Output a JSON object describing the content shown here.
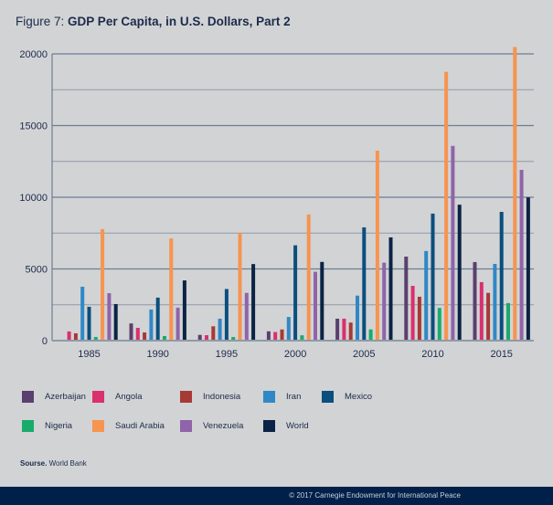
{
  "header": {
    "figure_prefix": "Figure 7:",
    "figure_title": "GDP Per Capita, in U.S. Dollars, Part 2"
  },
  "chart_data": {
    "type": "bar",
    "title": "GDP Per Capita, in U.S. Dollars, Part 2",
    "xlabel": "",
    "ylabel": "",
    "ylim": [
      0,
      20000
    ],
    "y_ticks": [
      0,
      5000,
      10000,
      15000,
      20000
    ],
    "y_tick_labels": [
      "0",
      "5000",
      "10000",
      "15000",
      "20000"
    ],
    "minor_gridline_step": 2500,
    "grid": true,
    "legend_position": "bottom",
    "categories": [
      "1985",
      "1990",
      "1995",
      "2000",
      "2005",
      "2010",
      "2015"
    ],
    "series": [
      {
        "name": "Azerbaijan",
        "color": "#5b3f6e",
        "values": [
          null,
          1200,
          400,
          650,
          1530,
          5860,
          5480
        ]
      },
      {
        "name": "Angola",
        "color": "#d9306e",
        "values": [
          640,
          890,
          380,
          600,
          1530,
          3820,
          4080
        ]
      },
      {
        "name": "Indonesia",
        "color": "#a63a36",
        "values": [
          510,
          570,
          1000,
          780,
          1260,
          3060,
          3330
        ]
      },
      {
        "name": "Iran",
        "color": "#2f88c6",
        "values": [
          3760,
          2170,
          1530,
          1650,
          3140,
          6250,
          5350
        ]
      },
      {
        "name": "Mexico",
        "color": "#0a4f7d",
        "values": [
          2360,
          3000,
          3600,
          6650,
          7900,
          8860,
          8980
        ]
      },
      {
        "name": "Nigeria",
        "color": "#19ab6a",
        "values": [
          255,
          320,
          250,
          370,
          780,
          2280,
          2620
        ]
      },
      {
        "name": "Saudi Arabia",
        "color": "#f7944f",
        "values": [
          7780,
          7130,
          7520,
          8800,
          13250,
          18750,
          20480
        ]
      },
      {
        "name": "Venezuela",
        "color": "#8f64a8",
        "values": [
          3310,
          2300,
          3330,
          4800,
          5440,
          13580,
          11910
        ]
      },
      {
        "name": "World",
        "color": "#0b2345",
        "values": [
          2550,
          4200,
          5340,
          5490,
          7200,
          9480,
          9990
        ]
      }
    ]
  },
  "legend": {
    "items": [
      {
        "label": "Azerbaijan",
        "color": "#5b3f6e"
      },
      {
        "label": "Angola",
        "color": "#d9306e"
      },
      {
        "label": "Indonesia",
        "color": "#a63a36"
      },
      {
        "label": "Iran",
        "color": "#2f88c6"
      },
      {
        "label": "Mexico",
        "color": "#0a4f7d"
      },
      {
        "label": "Nigeria",
        "color": "#19ab6a"
      },
      {
        "label": "Saudi Arabia",
        "color": "#f7944f"
      },
      {
        "label": "Venezuela",
        "color": "#8f64a8"
      },
      {
        "label": "World",
        "color": "#0b2345"
      }
    ]
  },
  "source": {
    "label": "Sourse.",
    "text": "World Bank"
  },
  "footer": {
    "copyright": "© 2017 Carnegie Endowment for International Peace"
  }
}
